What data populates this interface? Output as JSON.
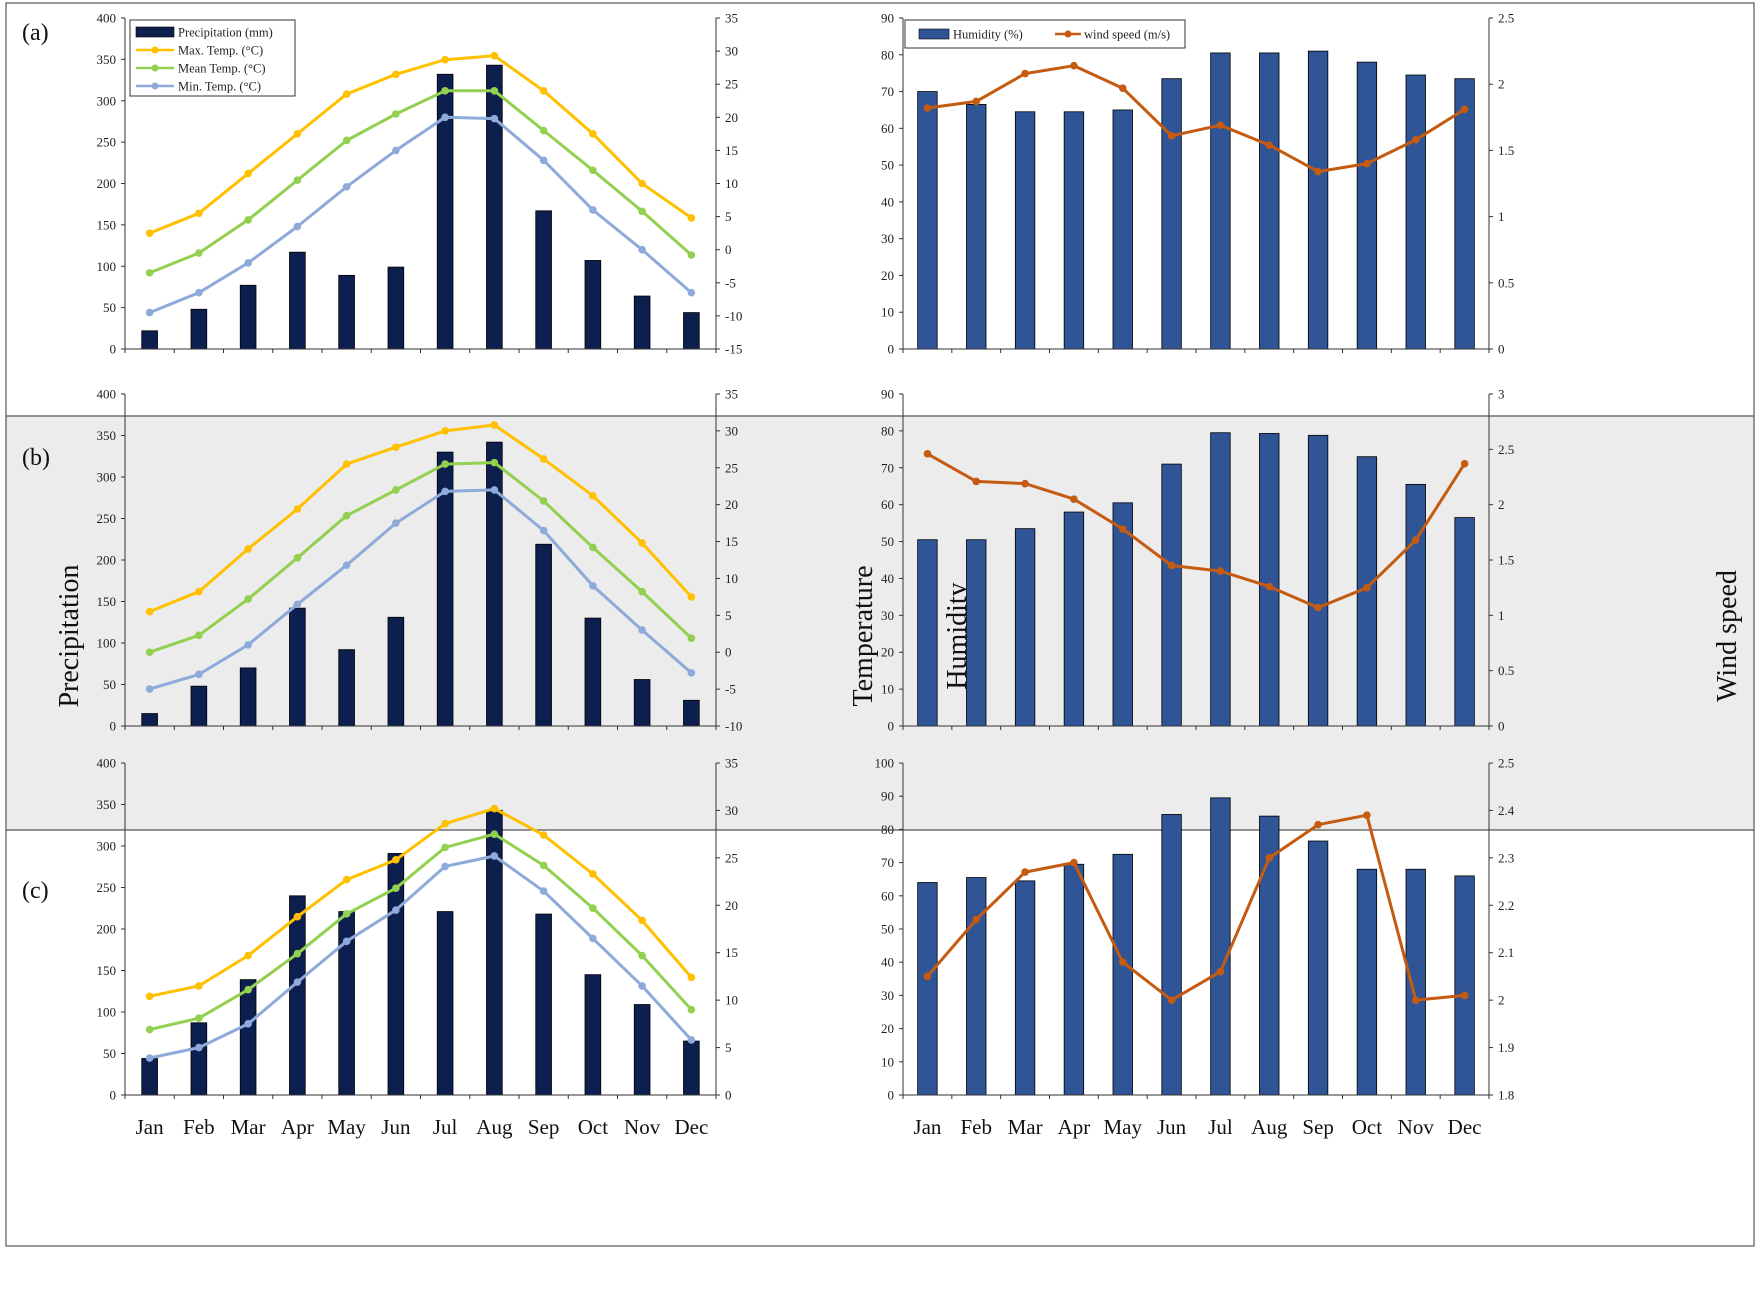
{
  "figure": {
    "months": [
      "Jan",
      "Feb",
      "Mar",
      "Apr",
      "May",
      "Jun",
      "Jul",
      "Aug",
      "Sep",
      "Oct",
      "Nov",
      "Dec"
    ],
    "axis_titles": {
      "precipitation": "Precipitation",
      "temperature": "Temperature",
      "humidity": "Humidity",
      "wind": "Wind speed"
    },
    "colors": {
      "precip_bar": "#0d1f4f",
      "humidity_bar": "#2f5597",
      "max_temp": "#ffc000",
      "mean_temp": "#92d050",
      "min_temp": "#8eaadb",
      "wind": "#c55a11",
      "panel_b_bg": "#ececec"
    }
  },
  "chart_data": [
    {
      "type": "bar+line",
      "panel": "(a)",
      "side": "left",
      "categories": [
        "Jan",
        "Feb",
        "Mar",
        "Apr",
        "May",
        "Jun",
        "Jul",
        "Aug",
        "Sep",
        "Oct",
        "Nov",
        "Dec"
      ],
      "y_left": {
        "min": 0,
        "max": 400,
        "step": 50
      },
      "y_right": {
        "min": -15,
        "max": 35,
        "step": 5
      },
      "legend": [
        "Precipitation (mm)",
        "Max. Temp. (°C)",
        "Mean Temp. (°C)",
        "Min. Temp. (°C)"
      ],
      "bars": {
        "name": "Precipitation (mm)",
        "values": [
          22,
          48,
          77,
          117,
          89,
          99,
          332,
          343,
          167,
          107,
          64,
          44
        ]
      },
      "lines": [
        {
          "name": "Max. Temp. (°C)",
          "key": "max",
          "values": [
            2.5,
            5.5,
            11.5,
            17.5,
            23.5,
            26.5,
            28.7,
            29.3,
            24,
            17.5,
            10,
            4.8
          ]
        },
        {
          "name": "Mean Temp. (°C)",
          "key": "mean",
          "values": [
            -3.5,
            -0.5,
            4.5,
            10.5,
            16.5,
            20.5,
            24,
            24,
            18,
            12,
            5.8,
            -0.8
          ]
        },
        {
          "name": "Min. Temp. (°C)",
          "key": "min",
          "values": [
            -9.5,
            -6.5,
            -2,
            3.5,
            9.5,
            15,
            20,
            19.8,
            13.5,
            6,
            0,
            -6.5
          ]
        }
      ]
    },
    {
      "type": "bar+line",
      "panel": "(a)",
      "side": "right",
      "categories": [
        "Jan",
        "Feb",
        "Mar",
        "Apr",
        "May",
        "Jun",
        "Jul",
        "Aug",
        "Sep",
        "Oct",
        "Nov",
        "Dec"
      ],
      "y_left": {
        "min": 0,
        "max": 90,
        "step": 10
      },
      "y_right": {
        "min": 0,
        "max": 2.5,
        "step": 0.5
      },
      "legend": [
        "Humidity (%)",
        "wind speed (m/s)"
      ],
      "bars": {
        "name": "Humidity (%)",
        "values": [
          70,
          66.5,
          64.5,
          64.5,
          65,
          73.5,
          80.5,
          80.5,
          81,
          78,
          74.5,
          73.5
        ]
      },
      "lines": [
        {
          "name": "wind speed (m/s)",
          "key": "wind",
          "values": [
            1.82,
            1.87,
            2.08,
            2.14,
            1.97,
            1.61,
            1.69,
            1.54,
            1.34,
            1.4,
            1.58,
            1.81
          ]
        }
      ]
    },
    {
      "type": "bar+line",
      "panel": "(b)",
      "side": "left",
      "categories": [
        "Jan",
        "Feb",
        "Mar",
        "Apr",
        "May",
        "Jun",
        "Jul",
        "Aug",
        "Sep",
        "Oct",
        "Nov",
        "Dec"
      ],
      "y_left": {
        "min": 0,
        "max": 400,
        "step": 50
      },
      "y_right": {
        "min": -10,
        "max": 35,
        "step": 5
      },
      "legend": [],
      "bars": {
        "name": "Precipitation (mm)",
        "values": [
          15,
          48,
          70,
          142,
          92,
          131,
          330,
          342,
          219,
          130,
          56,
          31
        ]
      },
      "lines": [
        {
          "name": "Max. Temp. (°C)",
          "key": "max",
          "values": [
            5.5,
            8.2,
            14,
            19.4,
            25.5,
            27.8,
            30,
            30.8,
            26.2,
            21.2,
            14.8,
            7.5
          ]
        },
        {
          "name": "Mean Temp. (°C)",
          "key": "mean",
          "values": [
            0,
            2.3,
            7.2,
            12.8,
            18.5,
            22,
            25.5,
            25.7,
            20.5,
            14.2,
            8.2,
            1.9
          ]
        },
        {
          "name": "Min. Temp. (°C)",
          "key": "min",
          "values": [
            -5,
            -3,
            1,
            6.5,
            11.8,
            17.5,
            21.8,
            22,
            16.5,
            9,
            3,
            -2.8
          ]
        }
      ]
    },
    {
      "type": "bar+line",
      "panel": "(b)",
      "side": "right",
      "categories": [
        "Jan",
        "Feb",
        "Mar",
        "Apr",
        "May",
        "Jun",
        "Jul",
        "Aug",
        "Sep",
        "Oct",
        "Nov",
        "Dec"
      ],
      "y_left": {
        "min": 0,
        "max": 90,
        "step": 10
      },
      "y_right": {
        "min": 0,
        "max": 3,
        "step": 0.5
      },
      "legend": [],
      "bars": {
        "name": "Humidity (%)",
        "values": [
          50.5,
          50.5,
          53.5,
          58,
          60.5,
          71,
          79.5,
          79.3,
          78.8,
          73,
          65.5,
          56.5
        ]
      },
      "lines": [
        {
          "name": "wind speed (m/s)",
          "key": "wind",
          "values": [
            2.46,
            2.21,
            2.19,
            2.05,
            1.78,
            1.45,
            1.4,
            1.26,
            1.07,
            1.25,
            1.68,
            2.37
          ]
        }
      ]
    },
    {
      "type": "bar+line",
      "panel": "(c)",
      "side": "left",
      "categories": [
        "Jan",
        "Feb",
        "Mar",
        "Apr",
        "May",
        "Jun",
        "Jul",
        "Aug",
        "Sep",
        "Oct",
        "Nov",
        "Dec"
      ],
      "y_left": {
        "min": 0,
        "max": 400,
        "step": 50
      },
      "y_right": {
        "min": 0,
        "max": 35,
        "step": 5
      },
      "legend": [],
      "bars": {
        "name": "Precipitation (mm)",
        "values": [
          44,
          87,
          139,
          240,
          221,
          291,
          221,
          343,
          218,
          145,
          109,
          65
        ]
      },
      "lines": [
        {
          "name": "Max. Temp. (°C)",
          "key": "max",
          "values": [
            10.4,
            11.5,
            14.7,
            18.8,
            22.7,
            24.8,
            28.6,
            30.2,
            27.4,
            23.3,
            18.4,
            12.4
          ]
        },
        {
          "name": "Mean Temp. (°C)",
          "key": "mean",
          "values": [
            6.9,
            8.1,
            11.1,
            14.9,
            19.1,
            21.8,
            26.1,
            27.5,
            24.2,
            19.7,
            14.7,
            9
          ]
        },
        {
          "name": "Min. Temp. (°C)",
          "key": "min",
          "values": [
            3.9,
            5,
            7.5,
            11.9,
            16.2,
            19.5,
            24.1,
            25.2,
            21.5,
            16.5,
            11.5,
            5.8
          ]
        }
      ]
    },
    {
      "type": "bar+line",
      "panel": "(c)",
      "side": "right",
      "categories": [
        "Jan",
        "Feb",
        "Mar",
        "Apr",
        "May",
        "Jun",
        "Jul",
        "Aug",
        "Sep",
        "Oct",
        "Nov",
        "Dec"
      ],
      "y_left": {
        "min": 0,
        "max": 100,
        "step": 10
      },
      "y_right": {
        "min": 1.8,
        "max": 2.5,
        "step": 0.1
      },
      "legend": [],
      "bars": {
        "name": "Humidity (%)",
        "values": [
          64,
          65.5,
          64.5,
          69.5,
          72.5,
          84.5,
          89.5,
          84,
          76.5,
          68,
          68,
          66
        ]
      },
      "lines": [
        {
          "name": "wind speed (m/s)",
          "key": "wind",
          "values": [
            2.05,
            2.17,
            2.27,
            2.29,
            2.08,
            2.0,
            2.06,
            2.3,
            2.37,
            2.39,
            2.0,
            2.01
          ]
        }
      ]
    }
  ]
}
